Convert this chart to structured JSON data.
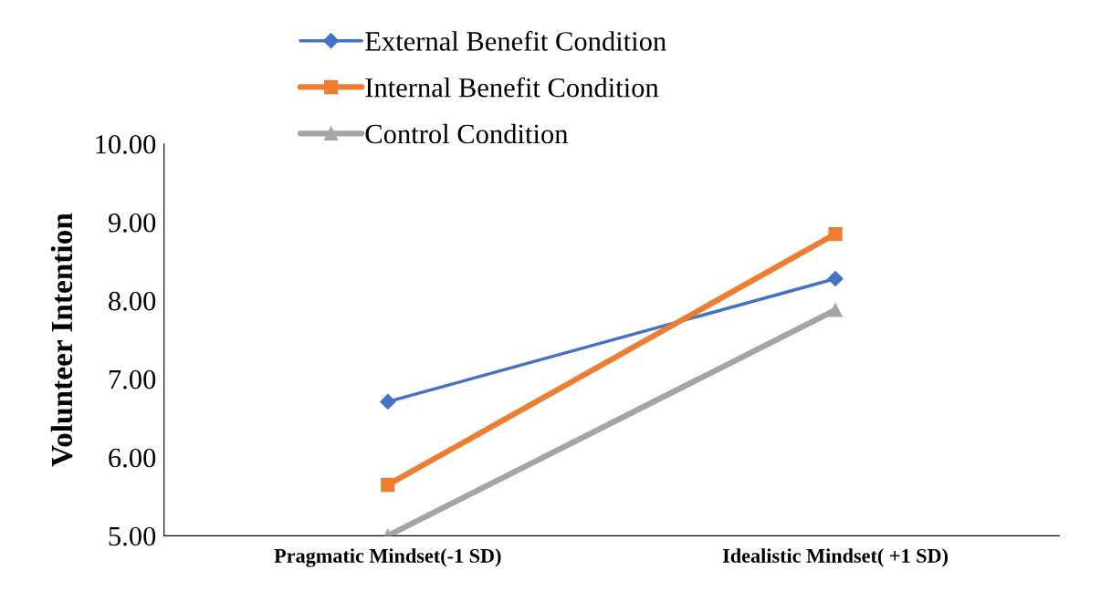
{
  "chart_data": {
    "type": "line",
    "ylabel": "Volunteer Intention",
    "categories": [
      "Pragmatic Mindset(-1 SD)",
      "Idealistic Mindset( +1 SD)"
    ],
    "series": [
      {
        "name": "External Benefit Condition",
        "color": "#4472c4",
        "values": [
          6.71,
          8.28
        ],
        "marker": "diamond"
      },
      {
        "name": "Internal Benefit Condition",
        "color": "#ed7d31",
        "values": [
          5.65,
          8.85
        ],
        "marker": "square"
      },
      {
        "name": "Control Condition",
        "color": "#a5a5a5",
        "values": [
          5.0,
          7.88
        ],
        "marker": "triangle"
      }
    ],
    "ylim": [
      5,
      10
    ],
    "yticks": [
      {
        "value": 5,
        "label": "5.00"
      },
      {
        "value": 6,
        "label": "6.00"
      },
      {
        "value": 7,
        "label": "7.00"
      },
      {
        "value": 8,
        "label": "8.00"
      },
      {
        "value": 9,
        "label": "9.00"
      },
      {
        "value": 10,
        "label": "10.00"
      }
    ],
    "grid": false,
    "legend": "top",
    "line_style": "solid"
  }
}
